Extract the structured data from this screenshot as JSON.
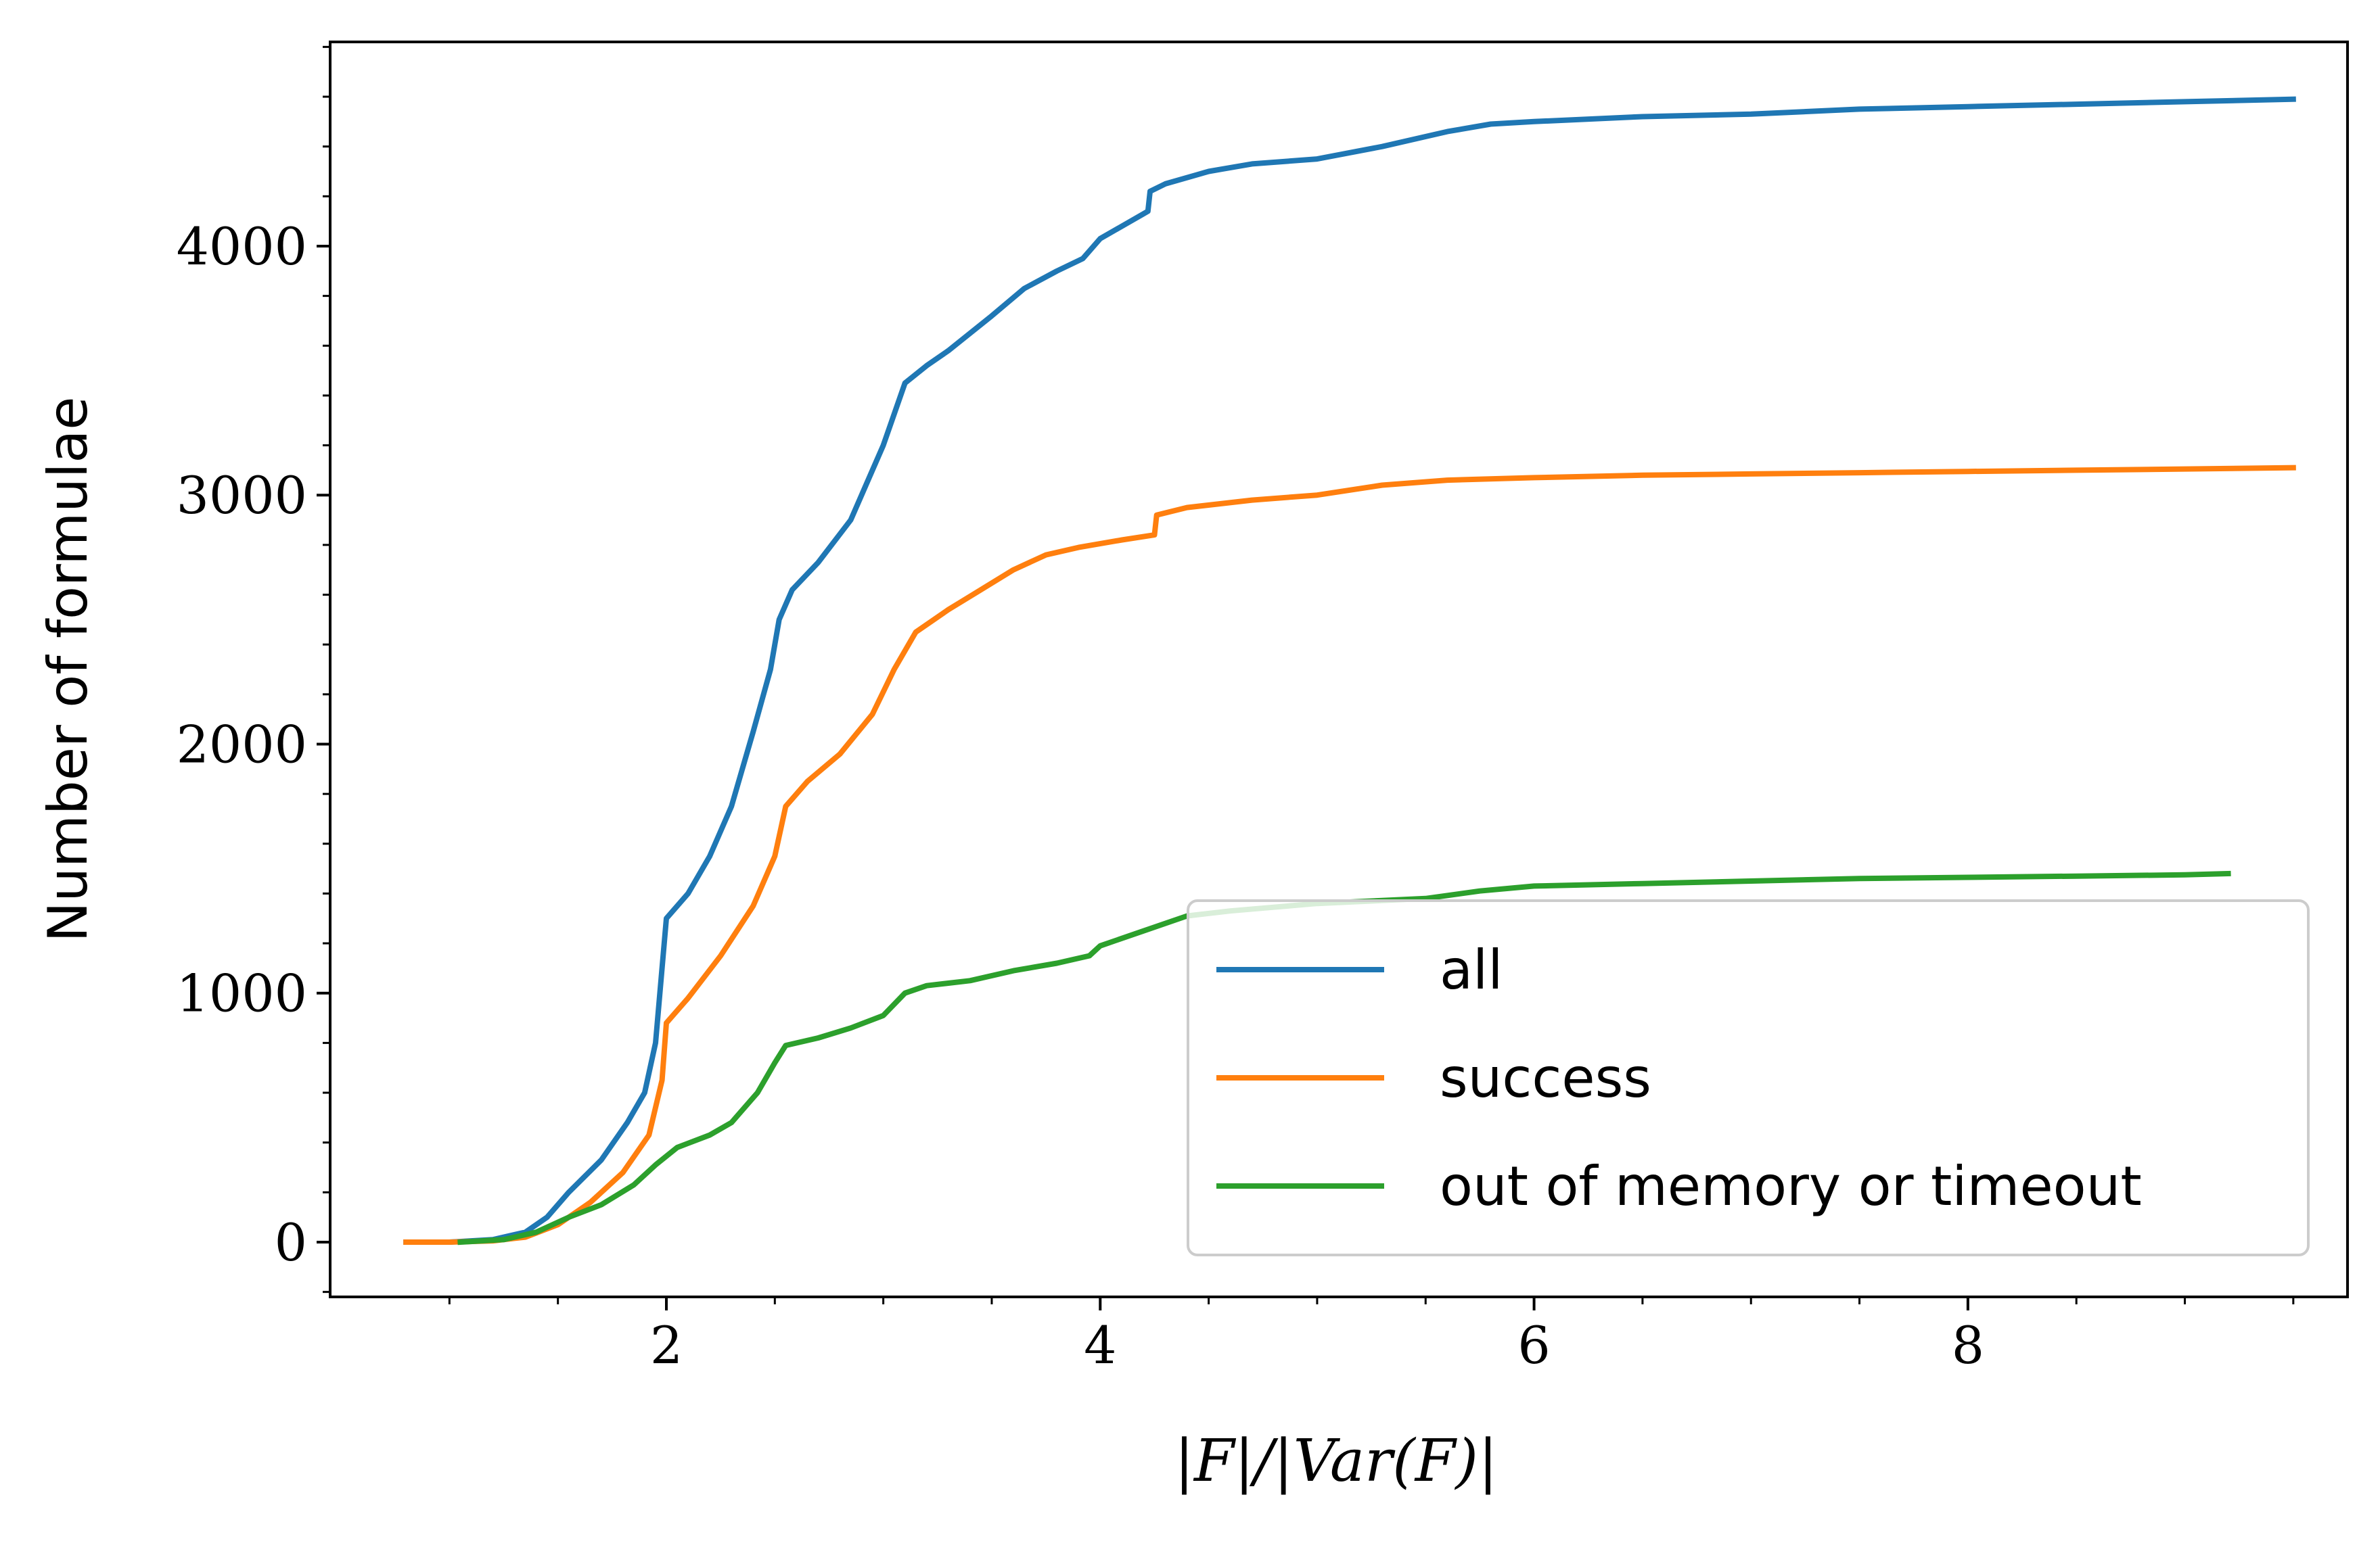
{
  "chart_data": {
    "type": "line",
    "xlabel": "|F|/|Var(F)|",
    "ylabel": "Number of formulae",
    "xlim": [
      0.45,
      9.75
    ],
    "ylim": [
      -220,
      4820
    ],
    "x_ticks": [
      2,
      4,
      6,
      8
    ],
    "x_tick_labels": [
      "2",
      "4",
      "6",
      "8"
    ],
    "y_ticks": [
      0,
      1000,
      2000,
      3000,
      4000
    ],
    "y_tick_labels": [
      "0",
      "1000",
      "2000",
      "3000",
      "4000"
    ],
    "grid": false,
    "legend_position": "lower-right",
    "series": [
      {
        "name": "all",
        "color": "#1f77b4",
        "points": [
          [
            0.8,
            0
          ],
          [
            1.0,
            0
          ],
          [
            1.2,
            10
          ],
          [
            1.35,
            40
          ],
          [
            1.45,
            100
          ],
          [
            1.55,
            200
          ],
          [
            1.7,
            330
          ],
          [
            1.82,
            480
          ],
          [
            1.9,
            600
          ],
          [
            1.95,
            800
          ],
          [
            1.98,
            1100
          ],
          [
            2.0,
            1300
          ],
          [
            2.1,
            1400
          ],
          [
            2.2,
            1550
          ],
          [
            2.3,
            1750
          ],
          [
            2.4,
            2050
          ],
          [
            2.48,
            2300
          ],
          [
            2.52,
            2500
          ],
          [
            2.58,
            2620
          ],
          [
            2.7,
            2730
          ],
          [
            2.85,
            2900
          ],
          [
            3.0,
            3200
          ],
          [
            3.1,
            3450
          ],
          [
            3.2,
            3520
          ],
          [
            3.3,
            3580
          ],
          [
            3.5,
            3720
          ],
          [
            3.65,
            3830
          ],
          [
            3.8,
            3900
          ],
          [
            3.92,
            3950
          ],
          [
            4.0,
            4030
          ],
          [
            4.2,
            4130
          ],
          [
            4.22,
            4140
          ],
          [
            4.23,
            4220
          ],
          [
            4.3,
            4250
          ],
          [
            4.5,
            4300
          ],
          [
            4.7,
            4330
          ],
          [
            5.0,
            4350
          ],
          [
            5.3,
            4400
          ],
          [
            5.6,
            4460
          ],
          [
            5.8,
            4490
          ],
          [
            6.0,
            4500
          ],
          [
            6.5,
            4520
          ],
          [
            7.0,
            4530
          ],
          [
            7.5,
            4550
          ],
          [
            8.0,
            4560
          ],
          [
            8.5,
            4570
          ],
          [
            9.0,
            4580
          ],
          [
            9.5,
            4590
          ]
        ]
      },
      {
        "name": "success",
        "color": "#ff7f0e",
        "points": [
          [
            0.8,
            0
          ],
          [
            1.0,
            0
          ],
          [
            1.2,
            5
          ],
          [
            1.35,
            20
          ],
          [
            1.5,
            70
          ],
          [
            1.65,
            160
          ],
          [
            1.8,
            280
          ],
          [
            1.92,
            430
          ],
          [
            1.98,
            650
          ],
          [
            2.0,
            880
          ],
          [
            2.1,
            980
          ],
          [
            2.25,
            1150
          ],
          [
            2.4,
            1350
          ],
          [
            2.5,
            1550
          ],
          [
            2.55,
            1750
          ],
          [
            2.65,
            1850
          ],
          [
            2.8,
            1960
          ],
          [
            2.95,
            2120
          ],
          [
            3.05,
            2300
          ],
          [
            3.15,
            2450
          ],
          [
            3.3,
            2540
          ],
          [
            3.45,
            2620
          ],
          [
            3.6,
            2700
          ],
          [
            3.75,
            2760
          ],
          [
            3.9,
            2790
          ],
          [
            4.1,
            2820
          ],
          [
            4.25,
            2840
          ],
          [
            4.26,
            2920
          ],
          [
            4.4,
            2950
          ],
          [
            4.7,
            2980
          ],
          [
            5.0,
            3000
          ],
          [
            5.3,
            3040
          ],
          [
            5.6,
            3060
          ],
          [
            6.0,
            3070
          ],
          [
            6.5,
            3080
          ],
          [
            7.0,
            3085
          ],
          [
            7.5,
            3090
          ],
          [
            8.0,
            3095
          ],
          [
            8.5,
            3100
          ],
          [
            9.0,
            3105
          ],
          [
            9.5,
            3110
          ]
        ]
      },
      {
        "name": "out of memory or timeout",
        "color": "#2ca02c",
        "points": [
          [
            1.05,
            0
          ],
          [
            1.25,
            10
          ],
          [
            1.4,
            40
          ],
          [
            1.55,
            100
          ],
          [
            1.7,
            150
          ],
          [
            1.85,
            230
          ],
          [
            1.95,
            310
          ],
          [
            2.05,
            380
          ],
          [
            2.2,
            430
          ],
          [
            2.3,
            480
          ],
          [
            2.42,
            600
          ],
          [
            2.5,
            720
          ],
          [
            2.55,
            790
          ],
          [
            2.7,
            820
          ],
          [
            2.85,
            860
          ],
          [
            3.0,
            910
          ],
          [
            3.1,
            1000
          ],
          [
            3.2,
            1030
          ],
          [
            3.4,
            1050
          ],
          [
            3.6,
            1090
          ],
          [
            3.8,
            1120
          ],
          [
            3.95,
            1150
          ],
          [
            4.0,
            1190
          ],
          [
            4.2,
            1250
          ],
          [
            4.4,
            1310
          ],
          [
            4.6,
            1330
          ],
          [
            4.8,
            1345
          ],
          [
            5.0,
            1360
          ],
          [
            5.5,
            1380
          ],
          [
            5.75,
            1410
          ],
          [
            6.0,
            1430
          ],
          [
            6.5,
            1440
          ],
          [
            7.0,
            1450
          ],
          [
            7.5,
            1460
          ],
          [
            8.0,
            1465
          ],
          [
            8.5,
            1470
          ],
          [
            9.0,
            1475
          ],
          [
            9.2,
            1480
          ]
        ]
      }
    ]
  }
}
